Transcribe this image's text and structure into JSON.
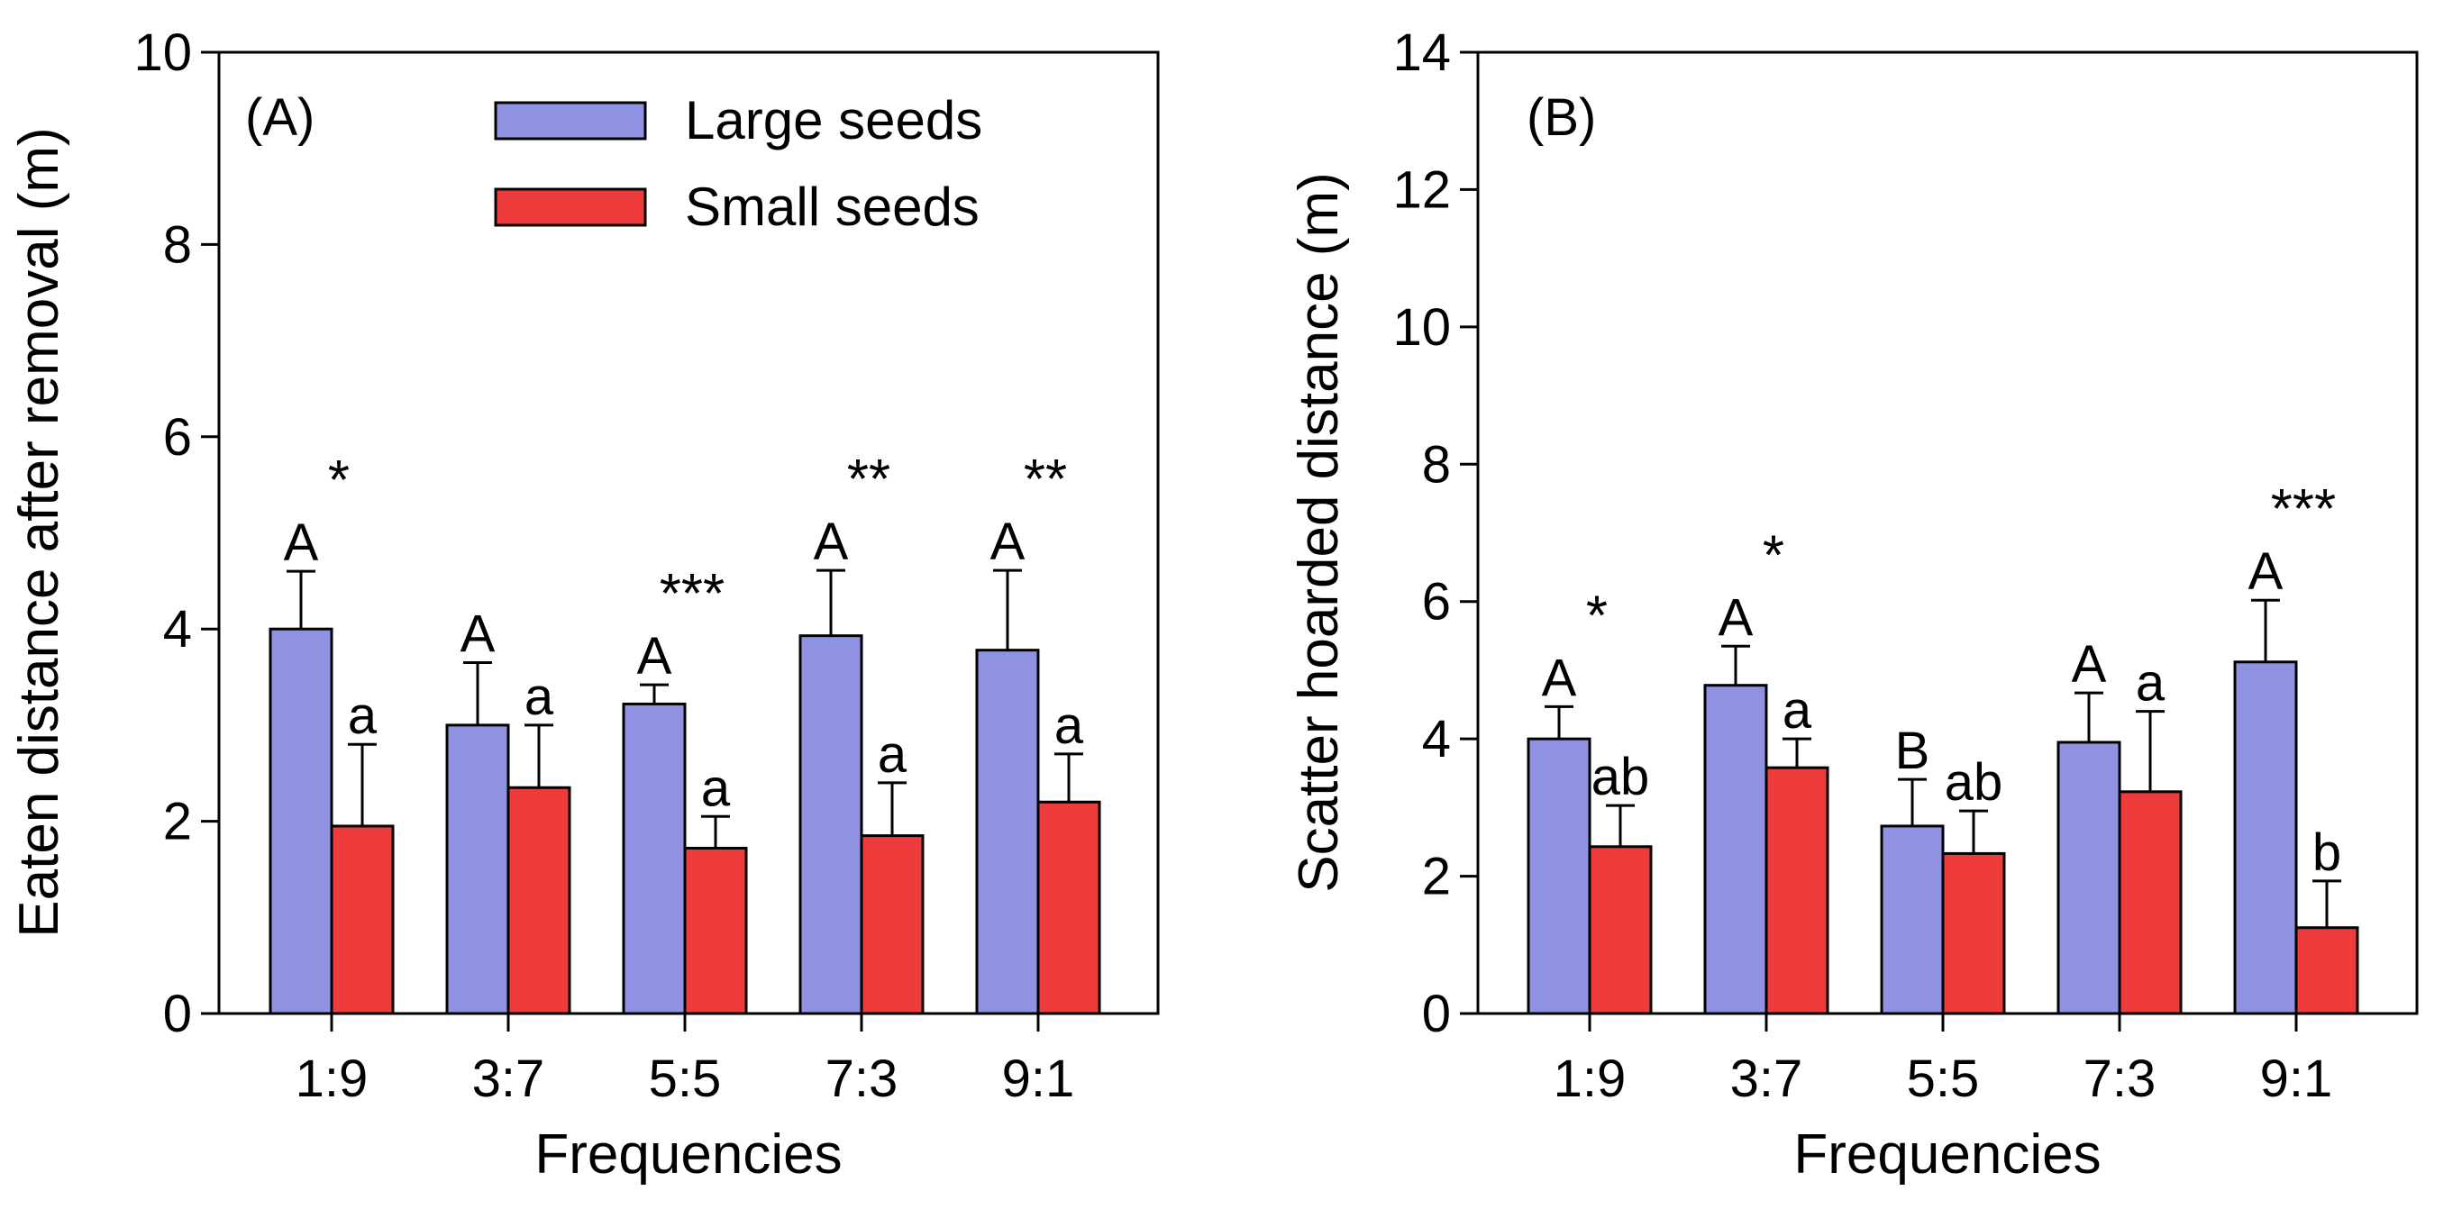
{
  "legend": [
    {
      "label": "Large seeds",
      "color": "#8f92e0"
    },
    {
      "label": "Small seeds",
      "color": "#ee3b3b"
    }
  ],
  "chart_data": [
    {
      "type": "bar",
      "panel_label": "(A)",
      "categories": [
        "1:9",
        "3:7",
        "5:5",
        "7:3",
        "9:1"
      ],
      "xlabel": "Frequencies",
      "ylabel": "Eaten distance after  removal (m)",
      "ylim": [
        0,
        10
      ],
      "yticks": [
        0,
        2,
        4,
        6,
        8,
        10
      ],
      "series": [
        {
          "name": "Large seeds",
          "color": "#8f92e0",
          "values": [
            4.0,
            3.0,
            3.22,
            3.93,
            3.78
          ],
          "errors": [
            0.6,
            0.65,
            0.2,
            0.68,
            0.83
          ],
          "letters": [
            "A",
            "A",
            "A",
            "A",
            "A"
          ]
        },
        {
          "name": "Small seeds",
          "color": "#ee3b3b",
          "values": [
            1.95,
            2.35,
            1.72,
            1.85,
            2.2
          ],
          "errors": [
            0.85,
            0.65,
            0.33,
            0.55,
            0.5
          ],
          "letters": [
            "a",
            "a",
            "a",
            "a",
            "a"
          ]
        }
      ],
      "significance": [
        "*",
        "",
        "***",
        "**",
        "**"
      ],
      "legend_position": "top-right"
    },
    {
      "type": "bar",
      "panel_label": "(B)",
      "categories": [
        "1:9",
        "3:7",
        "5:5",
        "7:3",
        "9:1"
      ],
      "xlabel": "Frequencies",
      "ylabel": "Scatter hoarded distance  (m)",
      "ylim": [
        0,
        14
      ],
      "yticks": [
        0,
        2,
        4,
        6,
        8,
        10,
        12,
        14
      ],
      "series": [
        {
          "name": "Large seeds",
          "color": "#8f92e0",
          "values": [
            4.0,
            4.78,
            2.73,
            3.95,
            5.12
          ],
          "errors": [
            0.47,
            0.57,
            0.68,
            0.72,
            0.9
          ],
          "letters": [
            "A",
            "A",
            "B",
            "A",
            "A"
          ]
        },
        {
          "name": "Small seeds",
          "color": "#ee3b3b",
          "values": [
            2.43,
            3.58,
            2.33,
            3.23,
            1.25
          ],
          "errors": [
            0.6,
            0.42,
            0.62,
            1.17,
            0.68
          ],
          "letters": [
            "ab",
            "a",
            "ab",
            "a",
            "b"
          ]
        }
      ],
      "significance": [
        "*",
        "*",
        "",
        "",
        "***"
      ]
    }
  ]
}
